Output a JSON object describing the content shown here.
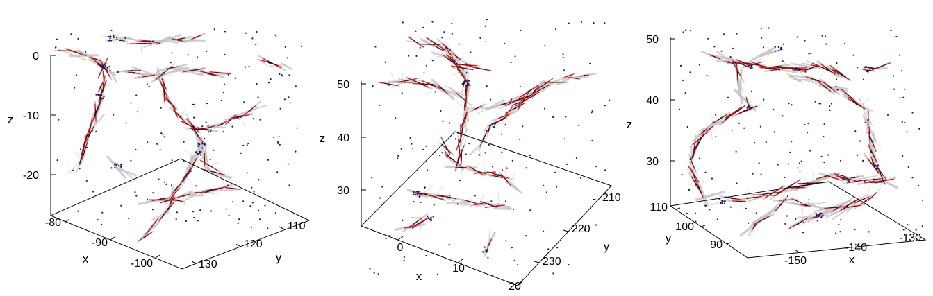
{
  "chart_data": [
    {
      "type": "scatter",
      "title": "",
      "xlabel": "x",
      "ylabel": "y",
      "zlabel": "z",
      "xlim": [
        -107,
        -78
      ],
      "ylim": [
        107,
        135
      ],
      "zlim": [
        -26,
        1
      ],
      "x_ticks": [
        "-80",
        "-90",
        "-100"
      ],
      "y_ticks": [
        "110",
        "120",
        "130"
      ],
      "z_ticks": [
        "0",
        "-10",
        "-20"
      ],
      "grid": false,
      "legend": "none",
      "colors": {
        "segment": "#c0c0c0",
        "direction": "#cc1111",
        "core": "#111111",
        "point": "#1a1a66"
      }
    },
    {
      "type": "scatter",
      "title": "",
      "xlabel": "x",
      "ylabel": "y",
      "zlabel": "z",
      "xlim": [
        -5,
        20
      ],
      "ylim": [
        205,
        237
      ],
      "zlim": [
        23,
        52
      ],
      "x_ticks": [
        "0",
        "10",
        "20"
      ],
      "y_ticks": [
        "210",
        "220",
        "230"
      ],
      "z_ticks": [
        "50",
        "40",
        "30"
      ],
      "grid": false,
      "legend": "none",
      "colors": {
        "segment": "#c0c0c0",
        "direction": "#cc1111",
        "core": "#111111",
        "point": "#1a1a66"
      }
    },
    {
      "type": "scatter",
      "title": "",
      "xlabel": "x",
      "ylabel": "y",
      "zlabel": "z",
      "xlim": [
        -158,
        -128
      ],
      "ylim": [
        82,
        111
      ],
      "zlim": [
        26,
        52
      ],
      "x_ticks": [
        "-150",
        "-140",
        "-130"
      ],
      "y_ticks": [
        "110",
        "100",
        "90"
      ],
      "z_ticks": [
        "50",
        "40",
        "30"
      ],
      "grid": false,
      "legend": "none",
      "colors": {
        "segment": "#c0c0c0",
        "direction": "#cc1111",
        "core": "#111111",
        "point": "#1a1a66"
      }
    }
  ]
}
